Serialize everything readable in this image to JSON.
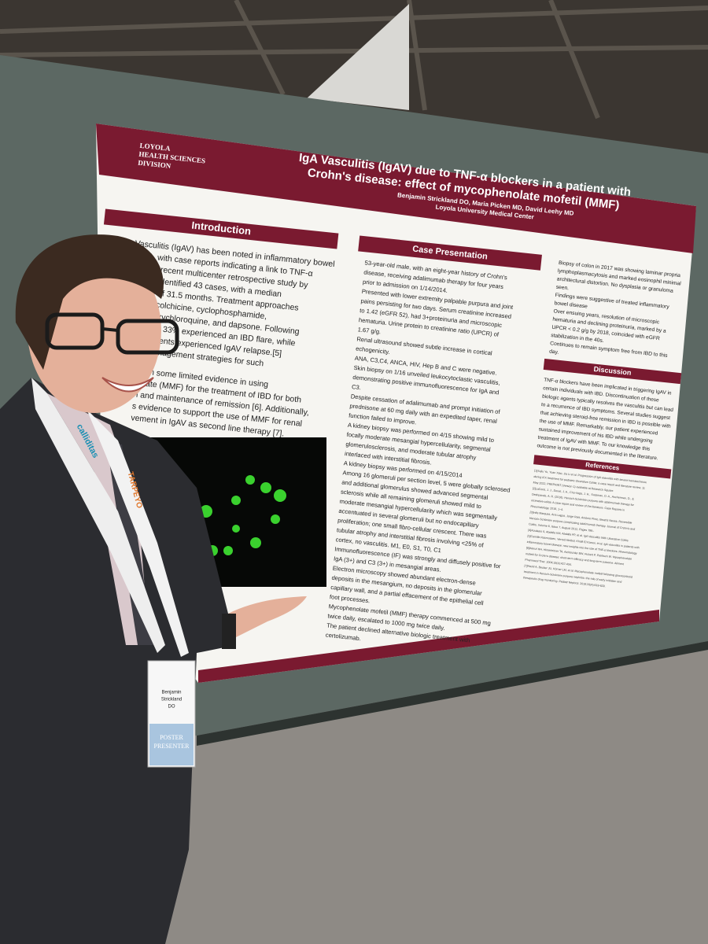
{
  "poster": {
    "logo": [
      "LOYOLA",
      "HEALTH SCIENCES",
      "DIVISION"
    ],
    "title": [
      "IgA Vasculitis (IgAV) due to TNF-α blockers in a patient with",
      "Crohn's disease: effect of mycophenolate mofetil (MMF)"
    ],
    "authors": "Benjamin Strickland DO, Maria Picken MD, David Leehy MD",
    "affiliation": "Loyola University Medical Center",
    "introduction": {
      "heading": "Introduction",
      "paragraph1": [
        "Vasculitis (IgAV) has been noted in inflammatory bowel",
        "(IBD), with case reports indicating a link to TNF-α",
        "[1-4]. A recent multicenter retrospective study by",
        "h et al. identified 43 cases, with a median",
        "uration of 31.5 months. Treatment approaches",
        "eroids, colchicine, cyclophosphamide,",
        "e, hydroxychloroquine, and dapsone. Following",
        "biologics, 33% experienced an IBD flare, while",
        "nged patients experienced IgAV relapse.[5]",
        "ma in management strategies for such"
      ],
      "paragraph2": [
        "been some limited evidence in using",
        "nolate (MMF) for the treatment of IBD for both",
        "n and maintenance of remission [6]. Additionally,",
        "s evidence to support the use of MMF for renal",
        "vement in IgAV as second line therapy [7]."
      ]
    },
    "case": {
      "heading": "Case Presentation",
      "lines": [
        "53-year-old male, with an eight-year history of Crohn's",
        "disease, receiving adalimumab therapy for four years",
        "prior to admission on 1/14/2014.",
        "Presented with lower extremity palpable purpura and joint",
        "pains persisting for two days. Serum creatinine increased",
        "to 1.42 (eGFR 52), had 3+proteinuria and microscopic",
        "hematuria. Urine protein to creatinine ratio (UPCR) of",
        "1.67 g/g.",
        "Renal ultrasound showed subtle increase in cortical",
        "echogenicity.",
        "ANA, C3,C4, ANCA, HIV, Hep B and C were negative.",
        "Skin biopsy on 1/16 unveiled leukocytoclastic vasculitis,",
        "demonstrating positive immunofluorescence for IgA and",
        "C3.",
        "Despite cessation of adalimumab and prompt initiation of",
        "prednisone at 60 mg daily with an expedited taper, renal",
        "function failed to improve.",
        "A kidney biopsy was performed on 4/15 showing mild to",
        "focally moderate mesangial hypercellularity, segmental",
        "glomerulosclerosis, and moderate tubular atrophy",
        "interlaced with interstitial fibrosis.",
        "A kidney biopsy was performed on 4/15/2014",
        "Among 16 glomeruli per section level, 5 were globally sclerosed",
        "and additional glomerulus showed advanced segmental",
        "sclerosis while all remaining glomeruli showed mild to",
        "moderate mesangial hypercellularity which was segmentally",
        "accentuated in several glomeruli but no endocapillary",
        "proliferation; one small fibro-cellular crescent.  There was",
        "tubular atrophy and interstitial fibrosis involving <25% of",
        "cortex, no vasculitis. M1, E0, S1, T0, C1",
        "Immunofluorescence (IF) was strongly and diffusely positive for",
        "IgA (3+) and C3 (3+) in mesangial areas.",
        "Electron microscopy showed abundant electron-dense",
        "deposits in the mesangium, no deposits in the glomerular",
        "capillary wall, and a partial effacement of the epithelial cell",
        "foot processes.",
        "Mycophenolate mofetil (MMF) therapy commenced at 500 mg",
        "twice daily, escalated to 1000 mg twice daily.",
        "The patient declined alternative biologic treatment with",
        "certolizumab."
      ]
    },
    "continued": [
      "Biopsy of colon in 2017 was showing laminar propria",
      "lymphoplasmacytosis and marked eosinophil minimal",
      "architectural distortion. No dysplasia or granuloma",
      "seen.",
      "Findings were suggestive of treated inflammatory",
      "bowel disease",
      "Over ensuing years, resolution of microscopic",
      "hematuria and declining proteinuria, marked by a",
      "UPCR < 0.2 g/g by 2018, coincided with eGFR",
      "stabilization in the 40s.",
      "Continues to remain symptom free from IBD to this",
      "day."
    ],
    "discussion": {
      "heading": "Discussion",
      "lines": [
        "TNF-α blockers have been implicated in triggering IgAV in",
        "certain individuals with IBD. Discontinuation of these",
        "biologic agents typically resolves the vasculitis but can lead",
        "to a recurrence of IBD symptoms. Several studies suggest",
        "that achieving steroid-free remission in IBD is possible with",
        "the use of MMF. Remarkably, our patient experienced",
        "sustained improvement of his IBD while undergoing",
        "treatment of IgAV with MMF. To our knowledge this",
        "outcome is not previously documented in the literature."
      ]
    },
    "references": {
      "heading": "References",
      "lines": [
        "[1]Sujiu Yu, Yuan Xiao, Jia Li et al. Progression of IgA vasculitis with severe hematochezia",
        "during IFX treatment for pediatric Ulcerative Colitis: a case report and literature review, 11",
        "May 2022, PREPRINT (Version 1) available at Research Square",
        "[2]LaConti, J. J., Donet, J. A., Cho-Vega, J. H., Sussman, D. A., Ascherman, D., &",
        "Deshpande, A. R. (2016). Henoch-Schönlein purpura with adalimumab therapy for",
        "ulcerative colitis: A case report and review of the literature. Case Reports in",
        "Rheumatology, 2016, 1–4.",
        "[3]Inês Marques, Ana Lagos, Jorge Reis, António Pinto, Beatriz Neves. Reversible",
        "Henoch-Schönlein purpura complicating adalimumab therapy. Journal of Crohn's and",
        "Colitis, Volume 6, Issue 7, August 2012, Pages 796–",
        "[4]Aoulaeis S, Abdalla KM, Abdalla FP, et al. IgA Vasculitis With Ulcerative Colitis",
        "[5]Camille Rasmussen, Verred Abitbol, Khalil El Karoui, et al. IgA vasculitis in patients with",
        "inflammatory bowel disease: new insights into the role of TNF-α blockers. Rheumatology",
        "[6]Wenzl HH, Hinterleitner TA, Aichbichler BW, Fickert P, Petritsch W. Mycophenolate",
        "mofetil for Crohn's disease: short-term efficacy and long-term outcome. Aliment",
        "Pharmacol Ther. 2004;19(4):427-434.",
        "[7]Hackl A, Becker JU, Körner LM, et al. Mycophenolate mofetil following glucocorticoid",
        "treatment in Henoch-Schönlein purpura nephritis: the role of early initiation and",
        "therapeutic drug monitoring. Pediatr Nephrol. 2018;33(4):619-629."
      ]
    }
  },
  "badge": {
    "name": [
      "Benjamin",
      "Strickland",
      "DO"
    ],
    "role": [
      "POSTER",
      "PRESENTER"
    ]
  },
  "lanyard": [
    "calliditas",
    "TARPEYO"
  ]
}
